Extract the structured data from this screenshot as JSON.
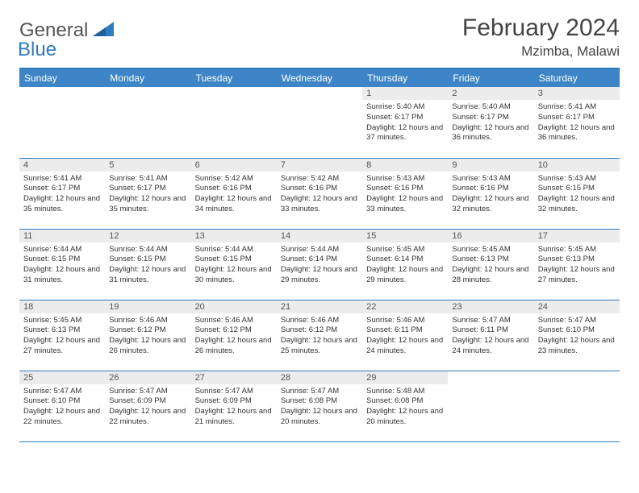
{
  "logo": {
    "part1": "General",
    "part2": "Blue"
  },
  "header": {
    "month_title": "February 2024",
    "location": "Mzimba, Malawi"
  },
  "colors": {
    "header_bg": "#3d85c6",
    "header_text": "#ffffff",
    "daynum_bg": "#ececec",
    "rule": "#2f7bbf",
    "logo_gray": "#555555",
    "logo_blue": "#2f7bbf"
  },
  "daysOfWeek": [
    "Sunday",
    "Monday",
    "Tuesday",
    "Wednesday",
    "Thursday",
    "Friday",
    "Saturday"
  ],
  "weeks": [
    [
      {
        "blank": true
      },
      {
        "blank": true
      },
      {
        "blank": true
      },
      {
        "blank": true
      },
      {
        "n": "1",
        "sr": "5:40 AM",
        "ss": "6:17 PM",
        "dl": "12 hours and 37 minutes."
      },
      {
        "n": "2",
        "sr": "5:40 AM",
        "ss": "6:17 PM",
        "dl": "12 hours and 36 minutes."
      },
      {
        "n": "3",
        "sr": "5:41 AM",
        "ss": "6:17 PM",
        "dl": "12 hours and 36 minutes."
      }
    ],
    [
      {
        "n": "4",
        "sr": "5:41 AM",
        "ss": "6:17 PM",
        "dl": "12 hours and 35 minutes."
      },
      {
        "n": "5",
        "sr": "5:41 AM",
        "ss": "6:17 PM",
        "dl": "12 hours and 35 minutes."
      },
      {
        "n": "6",
        "sr": "5:42 AM",
        "ss": "6:16 PM",
        "dl": "12 hours and 34 minutes."
      },
      {
        "n": "7",
        "sr": "5:42 AM",
        "ss": "6:16 PM",
        "dl": "12 hours and 33 minutes."
      },
      {
        "n": "8",
        "sr": "5:43 AM",
        "ss": "6:16 PM",
        "dl": "12 hours and 33 minutes."
      },
      {
        "n": "9",
        "sr": "5:43 AM",
        "ss": "6:16 PM",
        "dl": "12 hours and 32 minutes."
      },
      {
        "n": "10",
        "sr": "5:43 AM",
        "ss": "6:15 PM",
        "dl": "12 hours and 32 minutes."
      }
    ],
    [
      {
        "n": "11",
        "sr": "5:44 AM",
        "ss": "6:15 PM",
        "dl": "12 hours and 31 minutes."
      },
      {
        "n": "12",
        "sr": "5:44 AM",
        "ss": "6:15 PM",
        "dl": "12 hours and 31 minutes."
      },
      {
        "n": "13",
        "sr": "5:44 AM",
        "ss": "6:15 PM",
        "dl": "12 hours and 30 minutes."
      },
      {
        "n": "14",
        "sr": "5:44 AM",
        "ss": "6:14 PM",
        "dl": "12 hours and 29 minutes."
      },
      {
        "n": "15",
        "sr": "5:45 AM",
        "ss": "6:14 PM",
        "dl": "12 hours and 29 minutes."
      },
      {
        "n": "16",
        "sr": "5:45 AM",
        "ss": "6:13 PM",
        "dl": "12 hours and 28 minutes."
      },
      {
        "n": "17",
        "sr": "5:45 AM",
        "ss": "6:13 PM",
        "dl": "12 hours and 27 minutes."
      }
    ],
    [
      {
        "n": "18",
        "sr": "5:45 AM",
        "ss": "6:13 PM",
        "dl": "12 hours and 27 minutes."
      },
      {
        "n": "19",
        "sr": "5:46 AM",
        "ss": "6:12 PM",
        "dl": "12 hours and 26 minutes."
      },
      {
        "n": "20",
        "sr": "5:46 AM",
        "ss": "6:12 PM",
        "dl": "12 hours and 26 minutes."
      },
      {
        "n": "21",
        "sr": "5:46 AM",
        "ss": "6:12 PM",
        "dl": "12 hours and 25 minutes."
      },
      {
        "n": "22",
        "sr": "5:46 AM",
        "ss": "6:11 PM",
        "dl": "12 hours and 24 minutes."
      },
      {
        "n": "23",
        "sr": "5:47 AM",
        "ss": "6:11 PM",
        "dl": "12 hours and 24 minutes."
      },
      {
        "n": "24",
        "sr": "5:47 AM",
        "ss": "6:10 PM",
        "dl": "12 hours and 23 minutes."
      }
    ],
    [
      {
        "n": "25",
        "sr": "5:47 AM",
        "ss": "6:10 PM",
        "dl": "12 hours and 22 minutes."
      },
      {
        "n": "26",
        "sr": "5:47 AM",
        "ss": "6:09 PM",
        "dl": "12 hours and 22 minutes."
      },
      {
        "n": "27",
        "sr": "5:47 AM",
        "ss": "6:09 PM",
        "dl": "12 hours and 21 minutes."
      },
      {
        "n": "28",
        "sr": "5:47 AM",
        "ss": "6:08 PM",
        "dl": "12 hours and 20 minutes."
      },
      {
        "n": "29",
        "sr": "5:48 AM",
        "ss": "6:08 PM",
        "dl": "12 hours and 20 minutes."
      },
      {
        "blank": true
      },
      {
        "blank": true
      }
    ]
  ],
  "labels": {
    "sunrise": "Sunrise:",
    "sunset": "Sunset:",
    "daylight": "Daylight:"
  }
}
